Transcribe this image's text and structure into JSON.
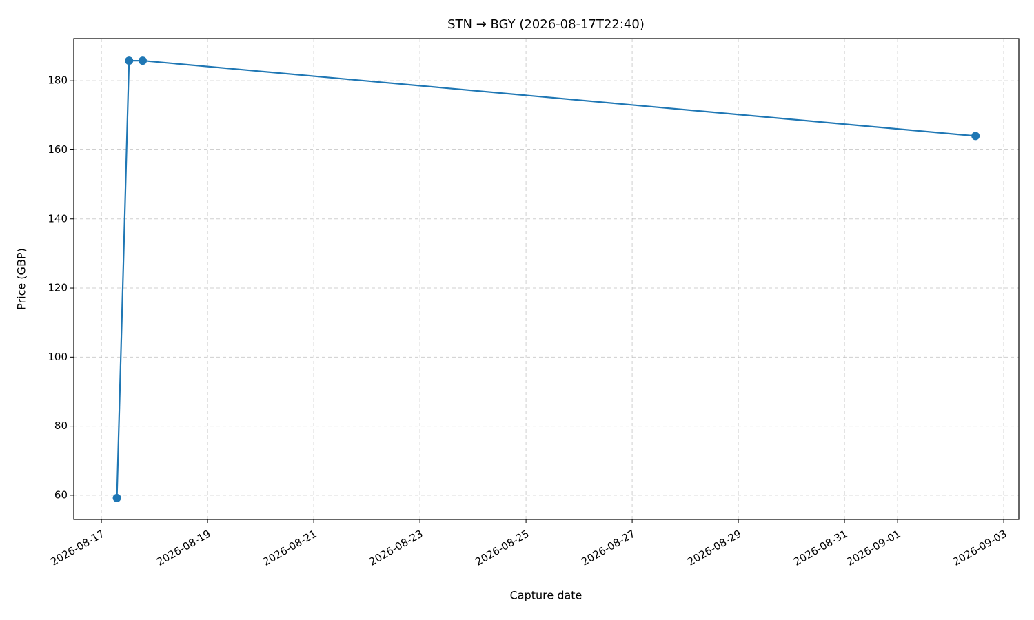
{
  "chart_data": {
    "type": "line",
    "title": "STN → BGY (2026-08-17T22:40)",
    "x_label": "Capture date",
    "y_label": "Price (GBP)",
    "x": [
      "2026-08-17T07:00",
      "2026-08-17T12:30",
      "2026-08-17T18:40",
      "2026-09-02T11:15"
    ],
    "series": [
      {
        "name": "Price",
        "color": "#1f77b4",
        "values": [
          59.2,
          185.8,
          185.8,
          164
        ]
      }
    ],
    "xlim": [
      "2026-08-16T11:30",
      "2026-09-03T06:50"
    ],
    "xticks": [
      "2026-08-17",
      "2026-08-19",
      "2026-08-21",
      "2026-08-23",
      "2026-08-25",
      "2026-08-27",
      "2026-08-29",
      "2026-08-31",
      "2026-09-01",
      "2026-09-03"
    ],
    "ylim": [
      53,
      192.2
    ],
    "yticks": [
      60,
      80,
      100,
      120,
      140,
      160,
      180
    ],
    "grid": true
  }
}
